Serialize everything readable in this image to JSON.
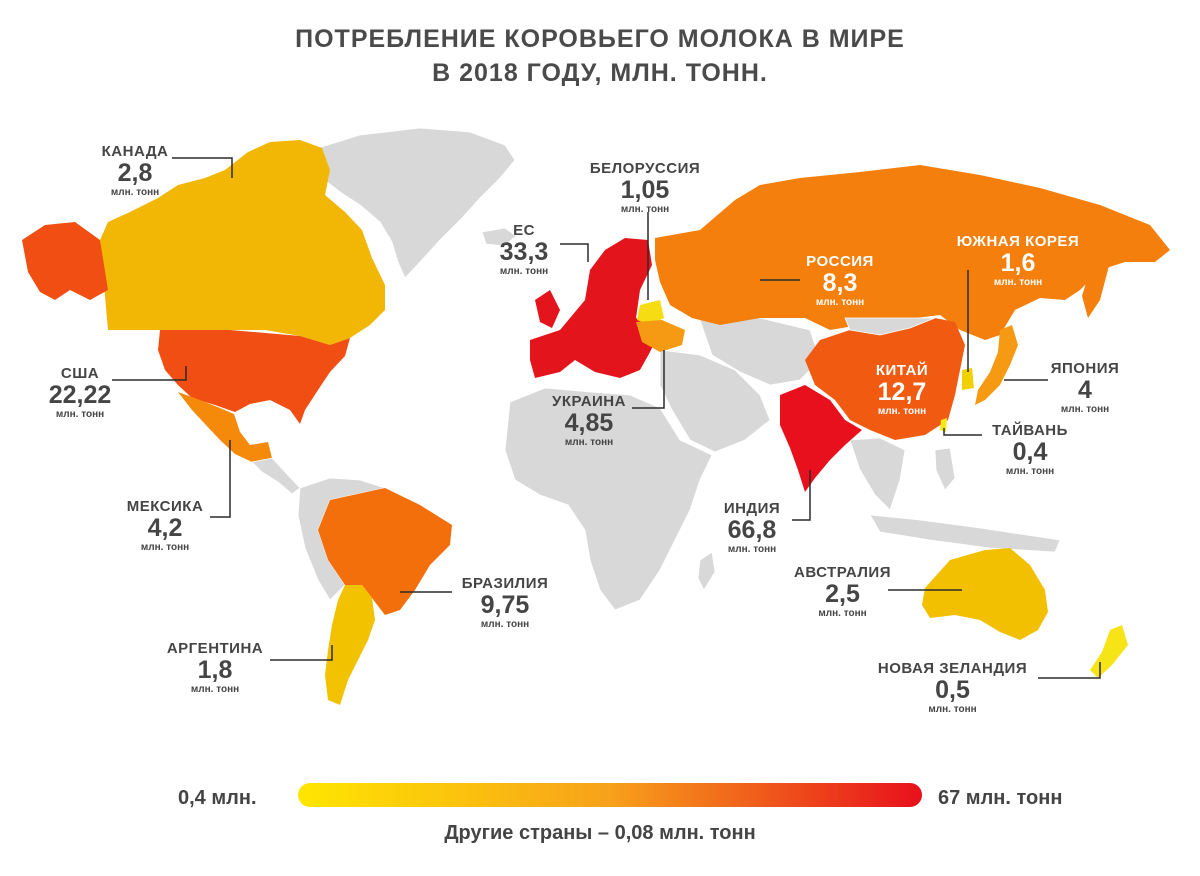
{
  "title": {
    "line1": "ПОТРЕБЛЕНИЕ КОРОВЬЕГО МОЛОКА В МИРЕ",
    "line2": "В 2018 ГОДУ, МЛН. ТОНН."
  },
  "countries": [
    {
      "id": "canada",
      "name": "КАНАДА",
      "value": "2,8",
      "unit": "млн. тонн",
      "color": "#F2B705"
    },
    {
      "id": "usa",
      "name": "США",
      "value": "22,22",
      "unit": "млн. тонн",
      "color": "#F04E13"
    },
    {
      "id": "mexico",
      "name": "МЕКСИКА",
      "value": "4,2",
      "unit": "млн. тонн",
      "color": "#F58A0A"
    },
    {
      "id": "brazil",
      "name": "БРАЗИЛИЯ",
      "value": "9,75",
      "unit": "млн. тонн",
      "color": "#F26F0C"
    },
    {
      "id": "argentina",
      "name": "АРГЕНТИНА",
      "value": "1,8",
      "unit": "млн. тонн",
      "color": "#F2C200"
    },
    {
      "id": "eu",
      "name": "ЕС",
      "value": "33,3",
      "unit": "млн. тонн",
      "color": "#E3141B"
    },
    {
      "id": "belarus",
      "name": "БЕЛОРУССИЯ",
      "value": "1,05",
      "unit": "млн. тонн",
      "color": "#F6DC12"
    },
    {
      "id": "ukraine",
      "name": "УКРАИНА",
      "value": "4,85",
      "unit": "млн. тонн",
      "color": "#F59A12"
    },
    {
      "id": "russia",
      "name": "РОССИЯ",
      "value": "8,3",
      "unit": "млн. тонн",
      "color": "#F47F0C"
    },
    {
      "id": "china",
      "name": "КИТАЙ",
      "value": "12,7",
      "unit": "млн. тонн",
      "color": "#F05A11"
    },
    {
      "id": "south_korea",
      "name": "ЮЖНАЯ КОРЕЯ",
      "value": "1,6",
      "unit": "млн. тонн",
      "color": "#F2D000"
    },
    {
      "id": "japan",
      "name": "ЯПОНИЯ",
      "value": "4",
      "unit": "млн. тонн",
      "color": "#F59A12"
    },
    {
      "id": "taiwan",
      "name": "ТАЙВАНЬ",
      "value": "0,4",
      "unit": "млн. тонн",
      "color": "#F7E81A"
    },
    {
      "id": "india",
      "name": "ИНДИЯ",
      "value": "66,8",
      "unit": "млн. тонн",
      "color": "#E8101C"
    },
    {
      "id": "australia",
      "name": "АВСТРАЛИЯ",
      "value": "2,5",
      "unit": "млн. тонн",
      "color": "#F2C000"
    },
    {
      "id": "new_zealand",
      "name": "НОВАЯ ЗЕЛАНДИЯ",
      "value": "0,5",
      "unit": "млн. тонн",
      "color": "#F6E416"
    }
  ],
  "other_color": "#D8D8D8",
  "legend": {
    "min_label": "0,4 млн.",
    "max_label": "67 млн. тонн",
    "min_color": "#FFE600",
    "mid_color": "#F7A11A",
    "max_color": "#E8101C",
    "note": "Другие страны – 0,08 млн. тонн"
  }
}
